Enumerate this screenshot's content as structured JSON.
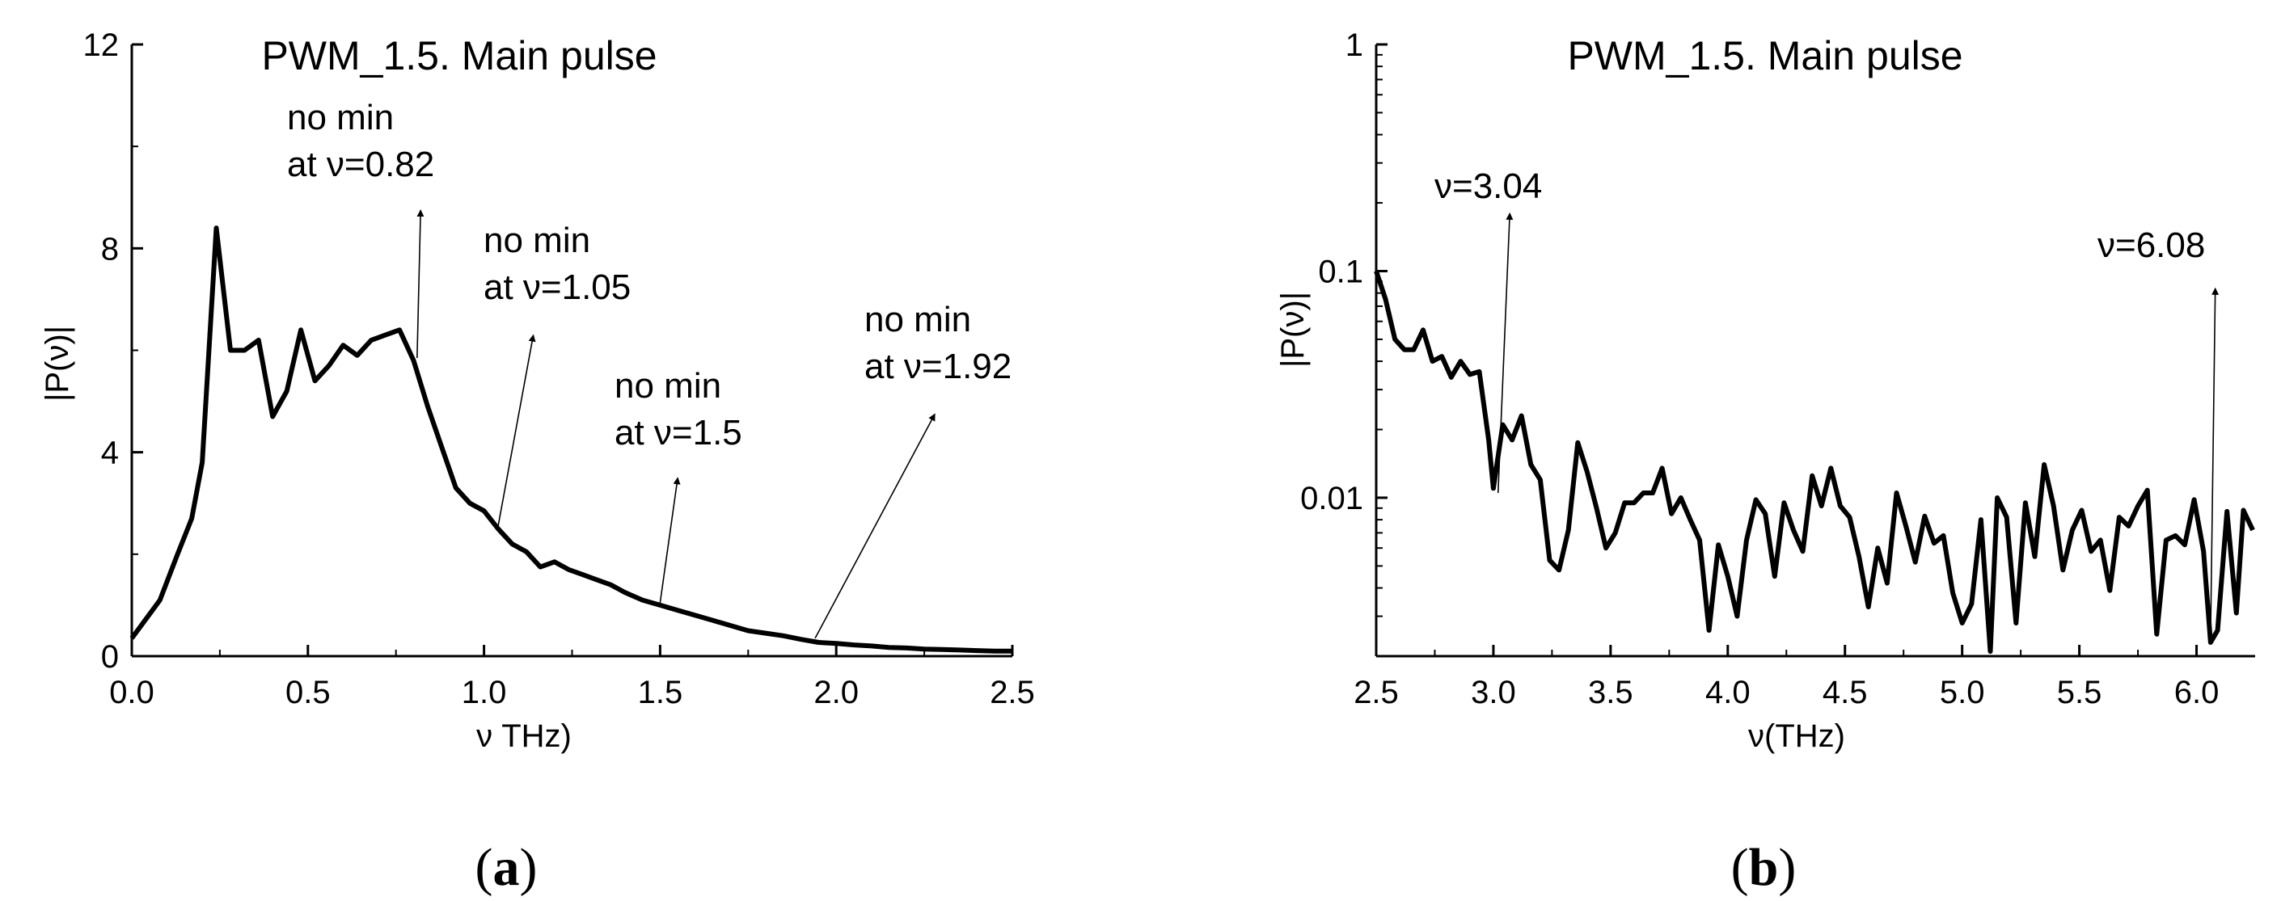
{
  "chart_data": [
    {
      "type": "line",
      "title": "PWM_1.5. Main pulse",
      "xlabel": "ν  THz)",
      "ylabel": "|P(ν)|",
      "xlim": [
        0,
        2.5
      ],
      "ylim": [
        0,
        12
      ],
      "yscale": "linear",
      "xticks": [
        0,
        0.5,
        1.0,
        1.5,
        2.0,
        2.5
      ],
      "xtick_labels": [
        "0.0",
        "0.5",
        "1.0",
        "1.5",
        "2.0",
        "2.5"
      ],
      "yticks": [
        0,
        4,
        8,
        12
      ],
      "ytick_labels": [
        "0",
        "4",
        "8",
        "12"
      ],
      "panel_label": {
        "open": "(",
        "letter": "a",
        "close": ")"
      },
      "series": [
        {
          "name": "|P(ν)|",
          "x": [
            0,
            0.08,
            0.13,
            0.17,
            0.2,
            0.24,
            0.28,
            0.32,
            0.36,
            0.4,
            0.44,
            0.48,
            0.52,
            0.56,
            0.6,
            0.64,
            0.68,
            0.72,
            0.76,
            0.8,
            0.84,
            0.88,
            0.92,
            0.96,
            1.0,
            1.04,
            1.08,
            1.12,
            1.16,
            1.2,
            1.24,
            1.28,
            1.32,
            1.36,
            1.4,
            1.45,
            1.5,
            1.55,
            1.6,
            1.65,
            1.7,
            1.75,
            1.8,
            1.85,
            1.9,
            1.95,
            2.0,
            2.05,
            2.1,
            2.15,
            2.2,
            2.25,
            2.3,
            2.35,
            2.4,
            2.45,
            2.5
          ],
          "y": [
            0.35,
            1.1,
            2.0,
            2.7,
            3.8,
            8.4,
            6.0,
            6.0,
            6.2,
            4.7,
            5.2,
            6.4,
            5.4,
            5.7,
            6.1,
            5.9,
            6.2,
            6.3,
            6.4,
            5.8,
            4.9,
            4.1,
            3.3,
            3.0,
            2.85,
            2.5,
            2.2,
            2.05,
            1.75,
            1.85,
            1.7,
            1.6,
            1.5,
            1.4,
            1.25,
            1.1,
            1.0,
            0.9,
            0.8,
            0.7,
            0.6,
            0.5,
            0.45,
            0.4,
            0.33,
            0.27,
            0.25,
            0.22,
            0.2,
            0.17,
            0.16,
            0.14,
            0.13,
            0.12,
            0.11,
            0.1,
            0.1
          ]
        }
      ],
      "annotations": [
        {
          "lines": [
            "no min",
            "at ν=0.82"
          ],
          "point": [
            0.81,
            5.85
          ],
          "tip": [
            0.82,
            8.75
          ]
        },
        {
          "lines": [
            "no min",
            "at ν=1.05"
          ],
          "point": [
            1.04,
            2.55
          ],
          "tip": [
            1.14,
            6.3
          ]
        },
        {
          "lines": [
            "no min",
            "at ν=1.5"
          ],
          "point": [
            1.5,
            1.05
          ],
          "tip": [
            1.55,
            3.5
          ]
        },
        {
          "lines": [
            "no min",
            "at ν=1.92"
          ],
          "point": [
            1.94,
            0.35
          ],
          "tip": [
            2.28,
            4.75
          ]
        }
      ]
    },
    {
      "type": "line",
      "title": "PWM_1.5. Main pulse",
      "xlabel": "ν(THz)",
      "ylabel": "|P(ν)|",
      "xlim": [
        2.5,
        6.25
      ],
      "ylim": [
        0.002,
        1
      ],
      "yscale": "log",
      "xticks": [
        2.5,
        3.0,
        3.5,
        4.0,
        4.5,
        5.0,
        5.5,
        6.0
      ],
      "xtick_labels": [
        "2.5",
        "3.0",
        "3.5",
        "4.0",
        "4.5",
        "5.0",
        "5.5",
        "6.0"
      ],
      "yticks": [
        0.01,
        0.1,
        1
      ],
      "ytick_labels": [
        "0.01",
        "0.1",
        "1"
      ],
      "panel_label": {
        "open": "(",
        "letter": "b",
        "close": ")"
      },
      "series": [
        {
          "name": "|P(ν)|",
          "x": [
            2.5,
            2.54,
            2.58,
            2.62,
            2.66,
            2.7,
            2.74,
            2.78,
            2.82,
            2.86,
            2.9,
            2.94,
            2.98,
            3.0,
            3.04,
            3.08,
            3.12,
            3.16,
            3.2,
            3.24,
            3.28,
            3.32,
            3.36,
            3.4,
            3.44,
            3.48,
            3.52,
            3.56,
            3.6,
            3.64,
            3.68,
            3.72,
            3.76,
            3.8,
            3.84,
            3.88,
            3.92,
            3.96,
            4.0,
            4.04,
            4.08,
            4.12,
            4.16,
            4.2,
            4.24,
            4.28,
            4.32,
            4.36,
            4.4,
            4.44,
            4.48,
            4.52,
            4.56,
            4.6,
            4.64,
            4.68,
            4.72,
            4.76,
            4.8,
            4.84,
            4.88,
            4.92,
            4.96,
            5.0,
            5.04,
            5.08,
            5.12,
            5.15,
            5.19,
            5.23,
            5.27,
            5.31,
            5.35,
            5.39,
            5.43,
            5.47,
            5.51,
            5.55,
            5.59,
            5.63,
            5.67,
            5.71,
            5.75,
            5.79,
            5.83,
            5.87,
            5.91,
            5.95,
            5.99,
            6.03,
            6.06,
            6.09,
            6.13,
            6.17,
            6.2,
            6.24
          ],
          "y": [
            0.1,
            0.075,
            0.05,
            0.045,
            0.045,
            0.055,
            0.04,
            0.042,
            0.034,
            0.04,
            0.035,
            0.036,
            0.018,
            0.011,
            0.021,
            0.018,
            0.023,
            0.014,
            0.012,
            0.0053,
            0.0048,
            0.0072,
            0.0175,
            0.013,
            0.009,
            0.006,
            0.007,
            0.0095,
            0.0095,
            0.0105,
            0.0105,
            0.0135,
            0.0085,
            0.01,
            0.008,
            0.0065,
            0.0026,
            0.0062,
            0.0045,
            0.003,
            0.0065,
            0.0098,
            0.0085,
            0.0045,
            0.0095,
            0.0072,
            0.0058,
            0.0125,
            0.0092,
            0.0135,
            0.0092,
            0.0082,
            0.0055,
            0.0033,
            0.006,
            0.0042,
            0.0105,
            0.0075,
            0.0052,
            0.0083,
            0.0063,
            0.0068,
            0.0038,
            0.0028,
            0.0034,
            0.008,
            0.0021,
            0.01,
            0.0082,
            0.0028,
            0.0095,
            0.0055,
            0.014,
            0.0092,
            0.0048,
            0.0072,
            0.0088,
            0.0058,
            0.0065,
            0.0039,
            0.0082,
            0.0075,
            0.0092,
            0.0108,
            0.0025,
            0.0065,
            0.0068,
            0.0062,
            0.0098,
            0.0058,
            0.0023,
            0.0026,
            0.0087,
            0.0031,
            0.0088,
            0.0072
          ]
        }
      ],
      "annotations": [
        {
          "lines": [
            "ν=3.04"
          ],
          "point": [
            3.02,
            0.0105
          ],
          "tip": [
            3.07,
            0.18
          ]
        },
        {
          "lines": [
            "ν=6.08"
          ],
          "point": [
            6.06,
            0.0025
          ],
          "tip": [
            6.08,
            0.084
          ]
        }
      ]
    }
  ]
}
